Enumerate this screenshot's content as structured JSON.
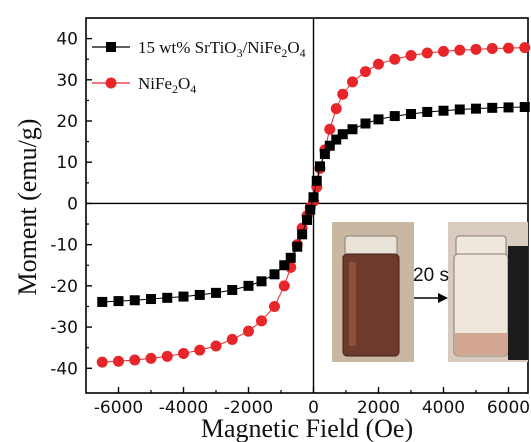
{
  "chart_data": {
    "type": "scatter",
    "xlabel": "Magnetic Field (Oe)",
    "ylabel": "Moment (emu/g)",
    "xlim": [
      -7000,
      6600
    ],
    "ylim": [
      -46,
      45
    ],
    "xticks": [
      -6000,
      -4000,
      -2000,
      0,
      2000,
      4000,
      6000
    ],
    "yticks": [
      -40,
      -30,
      -20,
      -10,
      0,
      10,
      20,
      30,
      40
    ],
    "xtick_labels": [
      "-6000",
      "-4000",
      "-2000",
      "0",
      "2000",
      "4000",
      "6000"
    ],
    "ytick_labels": [
      "-40",
      "-30",
      "-20",
      "-10",
      "0",
      "10",
      "20",
      "30",
      "40"
    ],
    "legend_position": "top-left",
    "grid": false,
    "series": [
      {
        "name": "15 wt% SrTiO3/NiFe2O4",
        "name_parts": {
          "a": "15 wt% SrTiO",
          "b": "3",
          "c": "/NiFe",
          "d": "2",
          "e": "O",
          "f": "4"
        },
        "marker": "square",
        "color": "#000000",
        "x": [
          -6500,
          -6000,
          -5500,
          -5000,
          -4500,
          -4000,
          -3500,
          -3000,
          -2500,
          -2000,
          -1600,
          -1200,
          -900,
          -700,
          -500,
          -350,
          -200,
          -100,
          0,
          100,
          200,
          350,
          500,
          700,
          900,
          1200,
          1600,
          2000,
          2500,
          3000,
          3500,
          4000,
          4500,
          5000,
          5500,
          6000,
          6500
        ],
        "y": [
          -23.9,
          -23.7,
          -23.5,
          -23.2,
          -22.9,
          -22.6,
          -22.2,
          -21.7,
          -21.0,
          -20.0,
          -18.9,
          -17.2,
          -15.0,
          -13.2,
          -10.5,
          -7.5,
          -4.0,
          -1.5,
          1.5,
          5.5,
          9.0,
          12.0,
          14.0,
          15.5,
          16.8,
          18.0,
          19.4,
          20.4,
          21.2,
          21.7,
          22.2,
          22.5,
          22.8,
          23.0,
          23.2,
          23.3,
          23.4
        ]
      },
      {
        "name": "NiFe2O4",
        "name_parts": {
          "a": "NiFe",
          "b": "2",
          "c": "O",
          "d": "4"
        },
        "marker": "circle",
        "color": "#e8262a",
        "x": [
          -6500,
          -6000,
          -5500,
          -5000,
          -4500,
          -4000,
          -3500,
          -3000,
          -2500,
          -2000,
          -1600,
          -1200,
          -900,
          -700,
          -500,
          -350,
          -200,
          -100,
          0,
          100,
          200,
          350,
          500,
          700,
          900,
          1200,
          1600,
          2000,
          2500,
          3000,
          3500,
          4000,
          4500,
          5000,
          5500,
          6000,
          6500
        ],
        "y": [
          -38.5,
          -38.3,
          -38.0,
          -37.6,
          -37.1,
          -36.4,
          -35.6,
          -34.6,
          -33.0,
          -31.0,
          -28.5,
          -25.0,
          -20.0,
          -15.5,
          -10.0,
          -6.0,
          -3.0,
          -1.0,
          0.5,
          4.0,
          8.5,
          13.0,
          18.0,
          23.0,
          26.5,
          29.5,
          32.0,
          33.8,
          35.0,
          35.9,
          36.5,
          36.9,
          37.2,
          37.4,
          37.6,
          37.7,
          37.8
        ]
      }
    ],
    "inset": {
      "arrow_label": "20 s"
    }
  }
}
